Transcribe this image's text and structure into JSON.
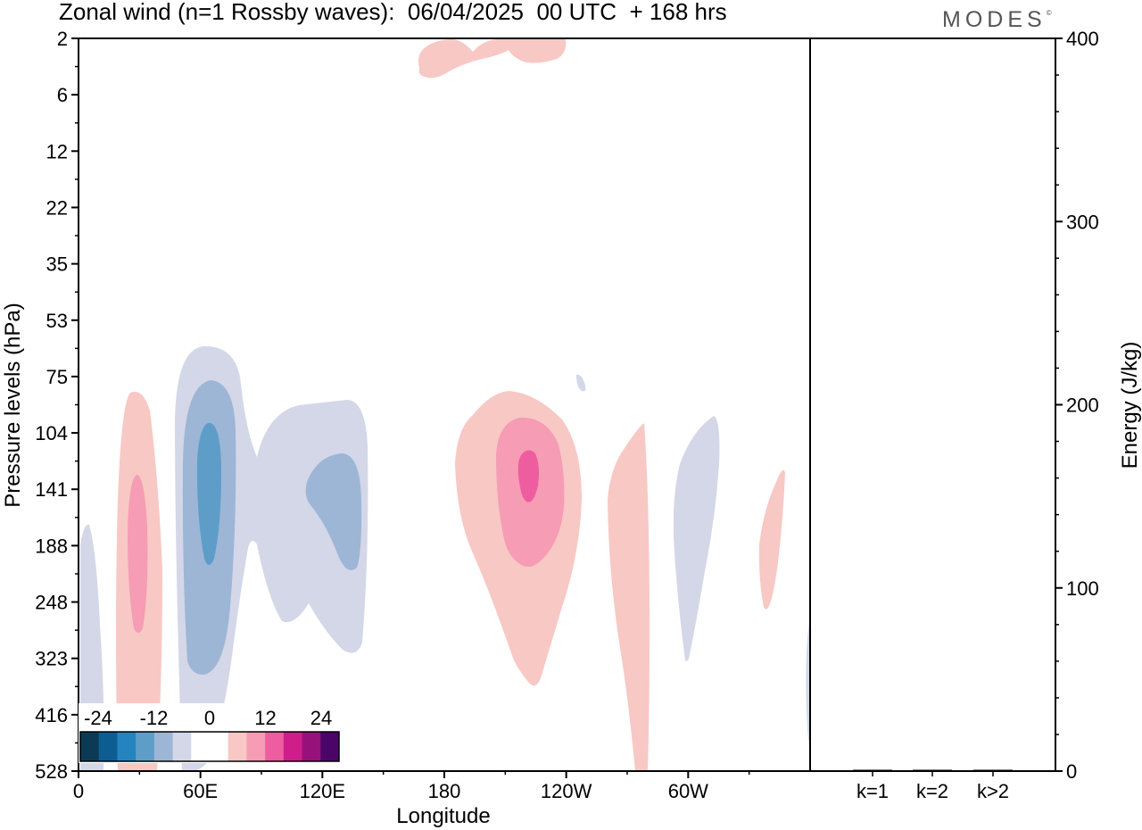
{
  "title": "Zonal wind (n=1 Rossby waves):  06/04/2025  00 UTC  + 168 hrs",
  "logo": "MODES",
  "chart_data": [
    {
      "type": "heatmap",
      "title": "Zonal wind (n=1 Rossby waves):  06/04/2025  00 UTC  + 168 hrs",
      "xlabel": "Longitude",
      "ylabel": "Pressure levels (hPa)",
      "x_tick_labels": [
        "0",
        "60E",
        "120E",
        "180",
        "120W",
        "60W"
      ],
      "x_tick_positions_deg_east": [
        0,
        60,
        120,
        180,
        240,
        300
      ],
      "xlim_deg_east": [
        0,
        360
      ],
      "y_tick_labels": [
        "2",
        "6",
        "12",
        "22",
        "35",
        "53",
        "75",
        "104",
        "141",
        "188",
        "248",
        "323",
        "416",
        "528"
      ],
      "y_axis_direction": "pressure increasing downward",
      "colorbar": {
        "tick_labels": [
          "-24",
          "-12",
          "0",
          "12",
          "24"
        ],
        "colors": [
          "#0c3a55",
          "#0b5d92",
          "#2484c0",
          "#5f9dc9",
          "#9db6d6",
          "#d4d7e8",
          "#ffffff",
          "#ffffff",
          "#f8c8c4",
          "#f69cb4",
          "#ee5da0",
          "#cf1e8a",
          "#96127a",
          "#4b0568"
        ],
        "placement": "bottom-left"
      },
      "features": [
        {
          "lon_deg_east": 28,
          "level_hPa": 188,
          "sign": "positive",
          "peak_approx": 8
        },
        {
          "lon_deg_east": 63,
          "level_hPa": 141,
          "sign": "negative",
          "peak_approx": -8
        },
        {
          "lon_deg_east": 124,
          "level_hPa": 160,
          "sign": "negative",
          "peak_approx": -4
        },
        {
          "lon_deg_east": 222,
          "level_hPa": 130,
          "sign": "positive",
          "peak_approx": 10
        },
        {
          "lon_deg_east": 277,
          "level_hPa": 248,
          "sign": "positive",
          "peak_approx": 2
        },
        {
          "lon_deg_east": 308,
          "level_hPa": 188,
          "sign": "negative",
          "peak_approx": -2
        },
        {
          "lon_deg_east": 342,
          "level_hPa": 200,
          "sign": "positive",
          "peak_approx": 2
        },
        {
          "lon_deg_east": 225,
          "level_hPa": 2,
          "sign": "positive",
          "peak_approx": 2
        }
      ]
    },
    {
      "type": "bar",
      "ylabel": "Energy (J/kg)",
      "categories": [
        "k=1",
        "k=2",
        "k>2"
      ],
      "values": [
        0.5,
        0.4,
        0.3
      ],
      "ylim": [
        0,
        400
      ],
      "y_tick_labels": [
        "0",
        "100",
        "200",
        "300",
        "400"
      ]
    }
  ]
}
